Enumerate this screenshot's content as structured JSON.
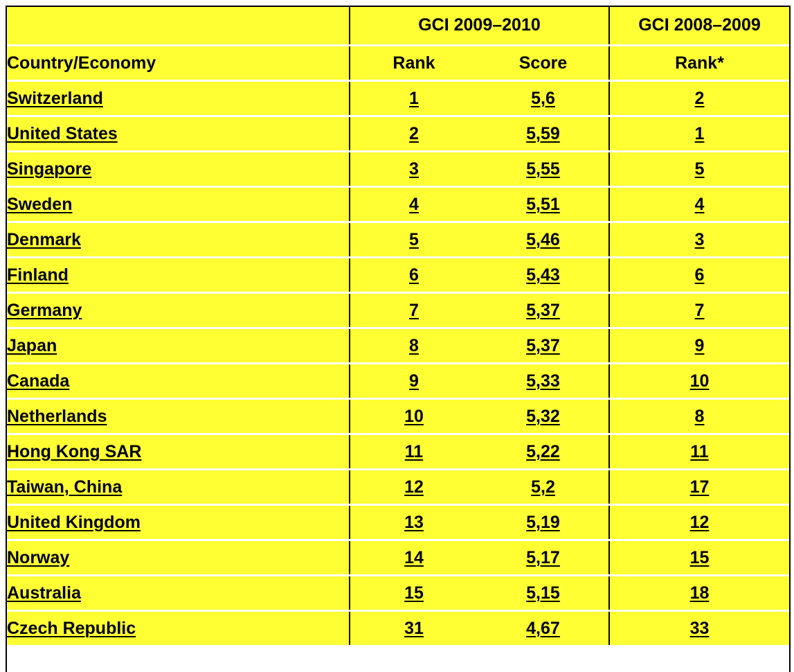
{
  "table": {
    "header": {
      "group_current": "GCI 2009–2010",
      "group_previous": "GCI 2008–2009",
      "country": "Country/Economy",
      "rank": "Rank",
      "score": "Score",
      "prev_rank": "Rank*"
    },
    "rows": [
      [
        "Switzerland",
        1,
        "5,6",
        2
      ],
      [
        "United States",
        2,
        "5,59",
        1
      ],
      [
        "Singapore",
        3,
        "5,55",
        5
      ],
      [
        "Sweden",
        4,
        "5,51",
        4
      ],
      [
        "Denmark",
        5,
        "5,46",
        3
      ],
      [
        "Finland",
        6,
        "5,43",
        6
      ],
      [
        "Germany",
        7,
        "5,37",
        7
      ],
      [
        "Japan",
        8,
        "5,37",
        9
      ],
      [
        "Canada",
        9,
        "5,33",
        10
      ],
      [
        "Netherlands",
        10,
        "5,32",
        8
      ],
      [
        "Hong Kong SAR",
        11,
        "5,22",
        11
      ],
      [
        "Taiwan, China",
        12,
        "5,2",
        17
      ],
      [
        "United Kingdom",
        13,
        "5,19",
        12
      ],
      [
        "Norway",
        14,
        "5,17",
        15
      ],
      [
        "Australia",
        15,
        "5,15",
        18
      ],
      [
        "Czech Republic",
        31,
        "4,67",
        33
      ]
    ]
  }
}
